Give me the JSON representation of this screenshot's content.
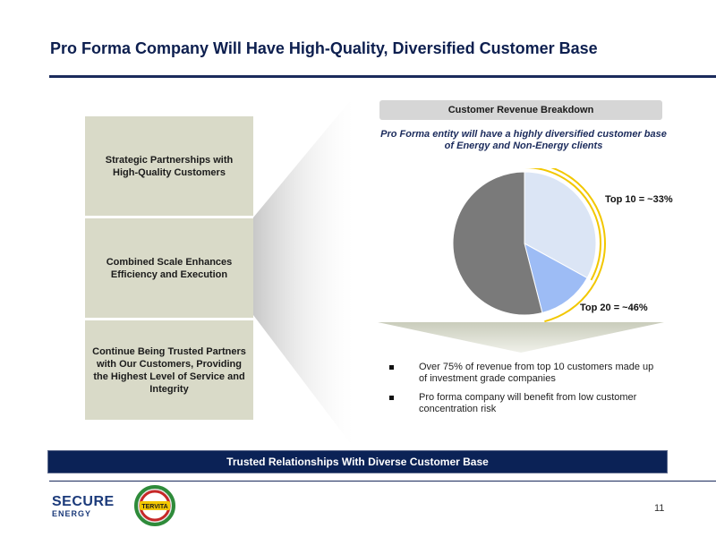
{
  "slide": {
    "title": "Pro Forma Company Will Have High-Quality, Diversified Customer Base",
    "page_number": "11"
  },
  "left_boxes": [
    {
      "text": "Strategic Partnerships with High-Quality Customers"
    },
    {
      "text": "Combined Scale Enhances Efficiency and Execution"
    },
    {
      "text": "Continue Being Trusted Partners with Our Customers, Providing the Highest Level of Service and Integrity"
    }
  ],
  "breakdown": {
    "header": "Customer Revenue Breakdown",
    "subtitle": "Pro Forma entity will have a highly diversified customer base of Energy and Non-Energy clients",
    "label_top10": "Top 10 = ~33%",
    "label_top20": "Top 20 = ~46%"
  },
  "bullets": [
    "Over 75% of revenue from top 10 customers made up of investment grade companies",
    "Pro forma company will benefit from low customer concentration risk"
  ],
  "banner": {
    "text": "Trusted Relationships With Diverse Customer Base"
  },
  "logos": {
    "secure_line1": "SECURE",
    "secure_line2": "ENERGY",
    "tervita": "TERVITA"
  },
  "colors": {
    "navy": "#0b2256",
    "pie_top10": "#dbe5f5",
    "pie_next10": "#9dbcf5",
    "pie_rest": "#7a7a7a",
    "bracket": "#f2c700",
    "box": "#d9dac8"
  },
  "chart_data": {
    "type": "pie",
    "slices": [
      {
        "name": "Top 10",
        "value": 33
      },
      {
        "name": "Top 11-20",
        "value": 13
      },
      {
        "name": "Other",
        "value": 54
      }
    ]
  }
}
